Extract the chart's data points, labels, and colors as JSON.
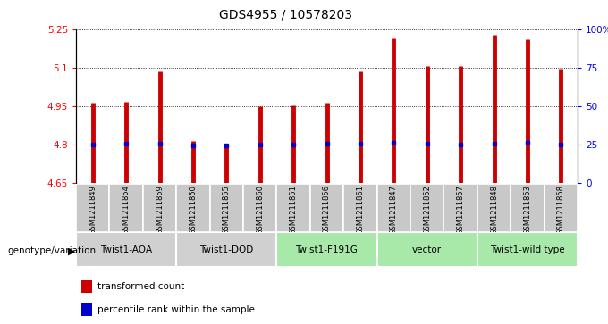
{
  "title": "GDS4955 / 10578203",
  "samples": [
    "GSM1211849",
    "GSM1211854",
    "GSM1211859",
    "GSM1211850",
    "GSM1211855",
    "GSM1211860",
    "GSM1211851",
    "GSM1211856",
    "GSM1211861",
    "GSM1211847",
    "GSM1211852",
    "GSM1211857",
    "GSM1211848",
    "GSM1211853",
    "GSM1211858"
  ],
  "bar_values": [
    4.962,
    4.968,
    5.087,
    4.815,
    4.798,
    4.95,
    4.952,
    4.965,
    5.085,
    5.215,
    5.107,
    5.107,
    5.228,
    5.212,
    5.095
  ],
  "dot_values": [
    4.8,
    4.803,
    4.805,
    4.798,
    4.798,
    4.8,
    4.8,
    4.802,
    4.802,
    4.807,
    4.805,
    4.8,
    4.805,
    4.807,
    4.8
  ],
  "groups": [
    {
      "label": "Twist1-AQA",
      "start": 0,
      "end": 3,
      "color": "#d0d0d0"
    },
    {
      "label": "Twist1-DQD",
      "start": 3,
      "end": 6,
      "color": "#d0d0d0"
    },
    {
      "label": "Twist1-F191G",
      "start": 6,
      "end": 9,
      "color": "#a8e8a8"
    },
    {
      "label": "vector",
      "start": 9,
      "end": 12,
      "color": "#a8e8a8"
    },
    {
      "label": "Twist1-wild type",
      "start": 12,
      "end": 15,
      "color": "#a8e8a8"
    }
  ],
  "ylim_left": [
    4.65,
    5.25
  ],
  "ylim_right": [
    0,
    100
  ],
  "yticks_left": [
    4.65,
    4.8,
    4.95,
    5.1,
    5.25
  ],
  "yticks_right": [
    0,
    25,
    50,
    75,
    100
  ],
  "ytick_labels_left": [
    "4.65",
    "4.8",
    "4.95",
    "5.1",
    "5.25"
  ],
  "ytick_labels_right": [
    "0",
    "25",
    "50",
    "75",
    "100%"
  ],
  "bar_color": "#cc0000",
  "dot_color": "#0000cc",
  "sample_bg": "#c8c8c8",
  "legend_bar_label": "transformed count",
  "legend_dot_label": "percentile rank within the sample",
  "genotype_label": "genotype/variation"
}
